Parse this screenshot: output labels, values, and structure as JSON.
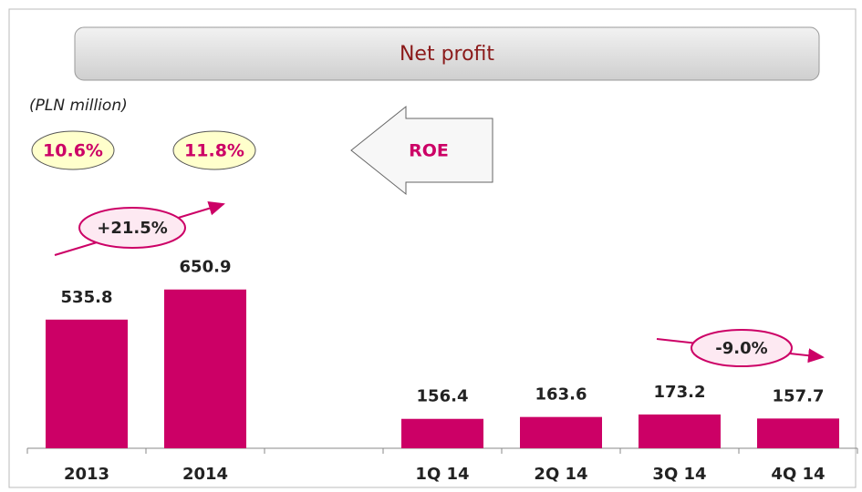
{
  "chart_data": {
    "type": "bar",
    "title": "Net profit",
    "subtitle": "(PLN million)",
    "categories": [
      "2013",
      "2014",
      null,
      "1Q 14",
      "2Q 14",
      "3Q 14",
      "4Q 14"
    ],
    "values": [
      535.8,
      650.9,
      null,
      156.4,
      163.6,
      173.2,
      157.7
    ],
    "color": "#cc0066",
    "ylim": [
      44,
      1660
    ],
    "annotations": {
      "roe_label": "ROE",
      "roe_2013": "10.6%",
      "roe_2014": "11.8%",
      "growth_year": "+21.5%",
      "growth_quarter": "-9.0%"
    }
  }
}
